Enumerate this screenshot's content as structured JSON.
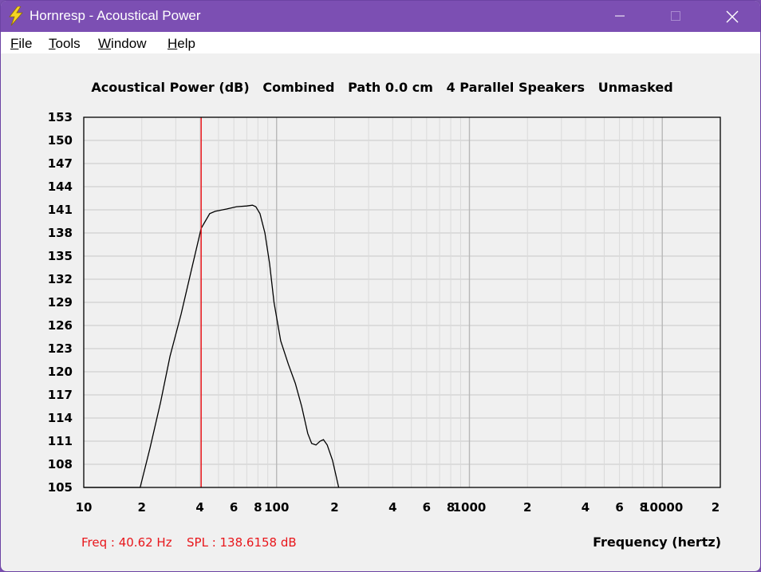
{
  "window": {
    "title": "Hornresp - Acoustical Power",
    "icon": "lightning-icon",
    "controls": [
      "minimize-icon",
      "maximize-icon",
      "close-icon"
    ]
  },
  "menu": {
    "items": [
      {
        "label": "File",
        "accel": "F"
      },
      {
        "label": "Tools",
        "accel": "T"
      },
      {
        "label": "Window",
        "accel": "W"
      },
      {
        "label": "Help",
        "accel": "H"
      }
    ]
  },
  "readout": {
    "freq": "Freq : 40.62 Hz",
    "spl": "SPL : 138.6158 dB"
  },
  "colors": {
    "titlebar": "#7c4fb3",
    "cursor": "#e8161b",
    "readout": "#e8161b",
    "curve": "#000000",
    "grid": "#c8c8c8"
  },
  "chart_data": {
    "type": "line",
    "title": "Acoustical Power (dB)   Combined   Path 0.0 cm   4 Parallel Speakers   Unmasked",
    "xlabel": "Frequency (hertz)",
    "ylabel": "",
    "x_scale": "log",
    "xlim": [
      10,
      20000
    ],
    "ylim": [
      105,
      153
    ],
    "y_ticks": [
      153,
      150,
      147,
      144,
      141,
      138,
      135,
      132,
      129,
      126,
      123,
      120,
      117,
      114,
      111,
      108,
      105
    ],
    "x_tick_labels": [
      {
        "x": 10,
        "label": "10"
      },
      {
        "x": 20,
        "label": "2"
      },
      {
        "x": 40,
        "label": "4"
      },
      {
        "x": 60,
        "label": "6"
      },
      {
        "x": 80,
        "label": "8"
      },
      {
        "x": 100,
        "label": "100"
      },
      {
        "x": 200,
        "label": "2"
      },
      {
        "x": 400,
        "label": "4"
      },
      {
        "x": 600,
        "label": "6"
      },
      {
        "x": 800,
        "label": "8"
      },
      {
        "x": 1000,
        "label": "1000"
      },
      {
        "x": 2000,
        "label": "2"
      },
      {
        "x": 4000,
        "label": "4"
      },
      {
        "x": 6000,
        "label": "6"
      },
      {
        "x": 8000,
        "label": "8"
      },
      {
        "x": 10000,
        "label": "10000"
      },
      {
        "x": 20000,
        "label": "2"
      }
    ],
    "grid": true,
    "cursor": {
      "freq": 40.62,
      "spl": 138.6158
    },
    "series": [
      {
        "x": [
          10,
          19.6,
          22,
          25,
          28,
          32,
          36,
          40.62,
          45,
          48,
          55,
          62,
          70,
          75,
          78,
          82,
          87,
          92,
          97,
          105,
          115,
          125,
          135,
          145,
          152,
          160,
          168,
          175,
          183,
          195,
          210
        ],
        "y": [
          105,
          105,
          110,
          116,
          122,
          127.5,
          133,
          138.6,
          140.5,
          140.8,
          141.1,
          141.4,
          141.5,
          141.6,
          141.4,
          140.5,
          138,
          134,
          129,
          124,
          121,
          118.5,
          115.5,
          112,
          110.7,
          110.5,
          111,
          111.2,
          110.5,
          108.5,
          105
        ]
      }
    ]
  }
}
